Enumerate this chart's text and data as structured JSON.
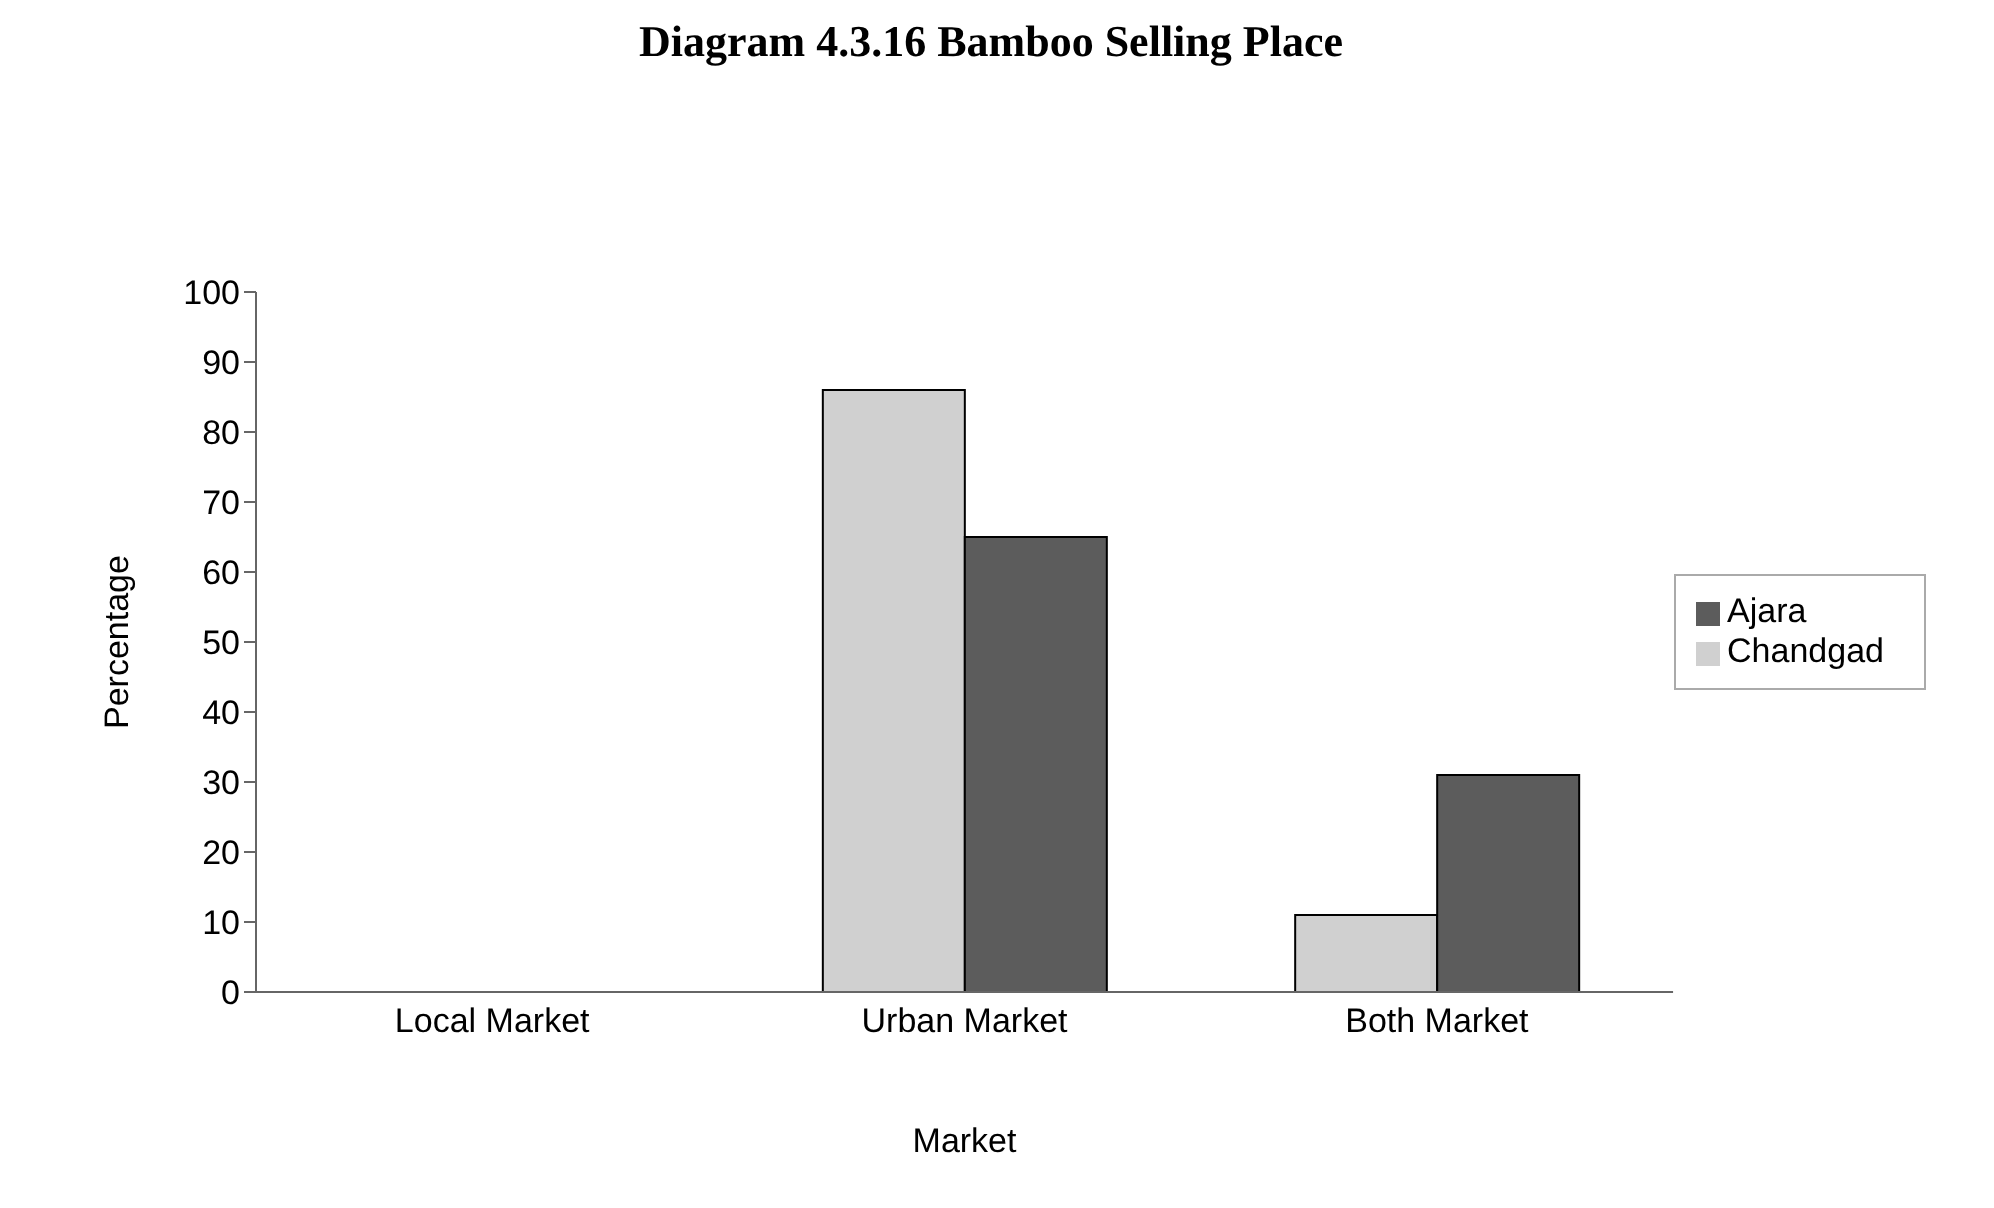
{
  "chart_data": {
    "type": "bar",
    "title": "Diagram 4.3.16 Bamboo Selling Place",
    "xlabel": "Market",
    "ylabel": "Percentage",
    "categories": [
      "Local Market",
      "Urban Market",
      "Both Market"
    ],
    "series": [
      {
        "name": "Chandgad",
        "color": "#d0d0d0",
        "values": [
          0,
          86,
          11
        ]
      },
      {
        "name": "Ajara",
        "color": "#5c5c5c",
        "values": [
          0,
          65,
          31
        ]
      }
    ],
    "ylim": [
      0,
      100
    ],
    "yticks": [
      0,
      10,
      20,
      30,
      40,
      50,
      60,
      70,
      80,
      90,
      100
    ],
    "grid": false,
    "legend": "right"
  }
}
